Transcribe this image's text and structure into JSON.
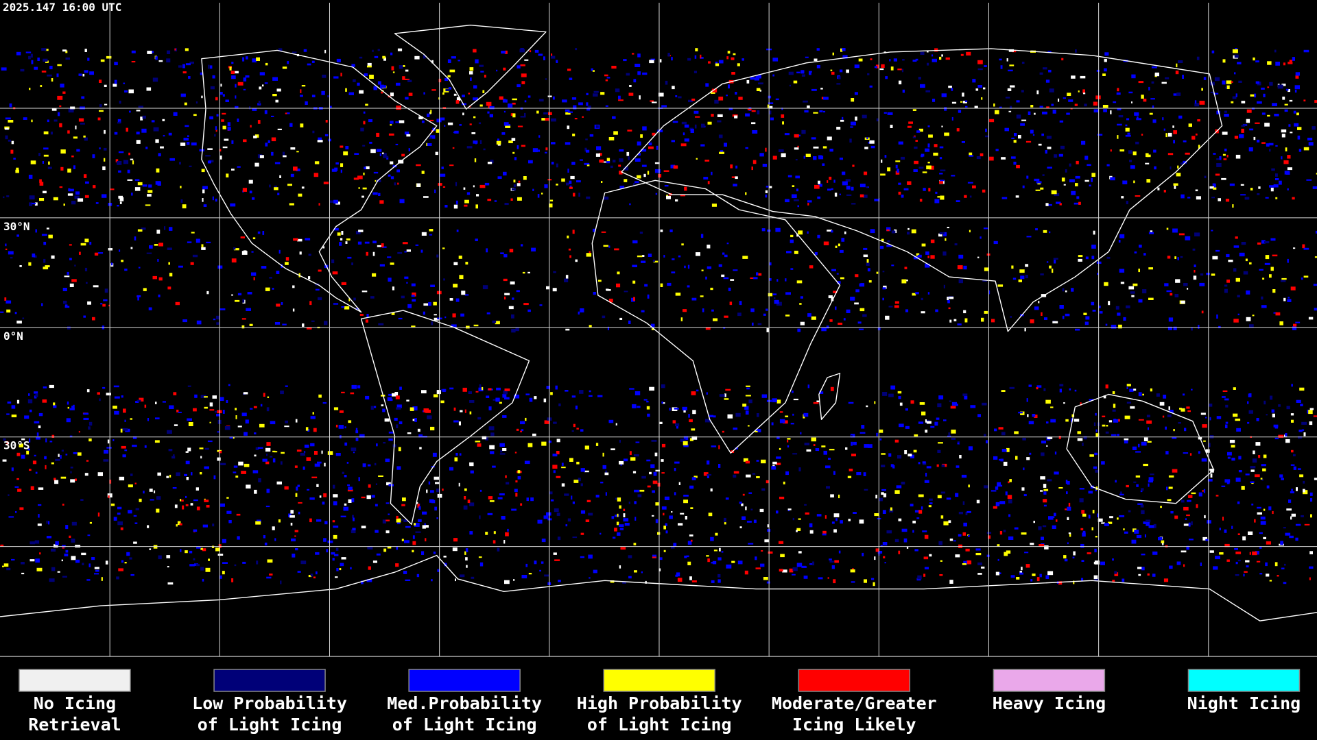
{
  "header": {
    "timestamp": "2025.147 16:00 UTC"
  },
  "map": {
    "latitude_labels": [
      "30°N",
      "0°N",
      "30°S"
    ]
  },
  "legend": {
    "items": [
      {
        "label": [
          "No Icing",
          "Retrieval"
        ],
        "color": "#f0f0f0"
      },
      {
        "label": [
          "Low Probability",
          "of Light Icing"
        ],
        "color": "#000078"
      },
      {
        "label": [
          "Med.Probability",
          "of Light Icing"
        ],
        "color": "#0000ff"
      },
      {
        "label": [
          "High Probability",
          "of Light Icing"
        ],
        "color": "#ffff00"
      },
      {
        "label": [
          "Moderate/Greater",
          "Icing Likely"
        ],
        "color": "#ff0000"
      },
      {
        "label": [
          "Heavy Icing"
        ],
        "color": "#eaa8ea"
      },
      {
        "label": [
          "Night Icing"
        ],
        "color": "#00ffff"
      }
    ]
  }
}
